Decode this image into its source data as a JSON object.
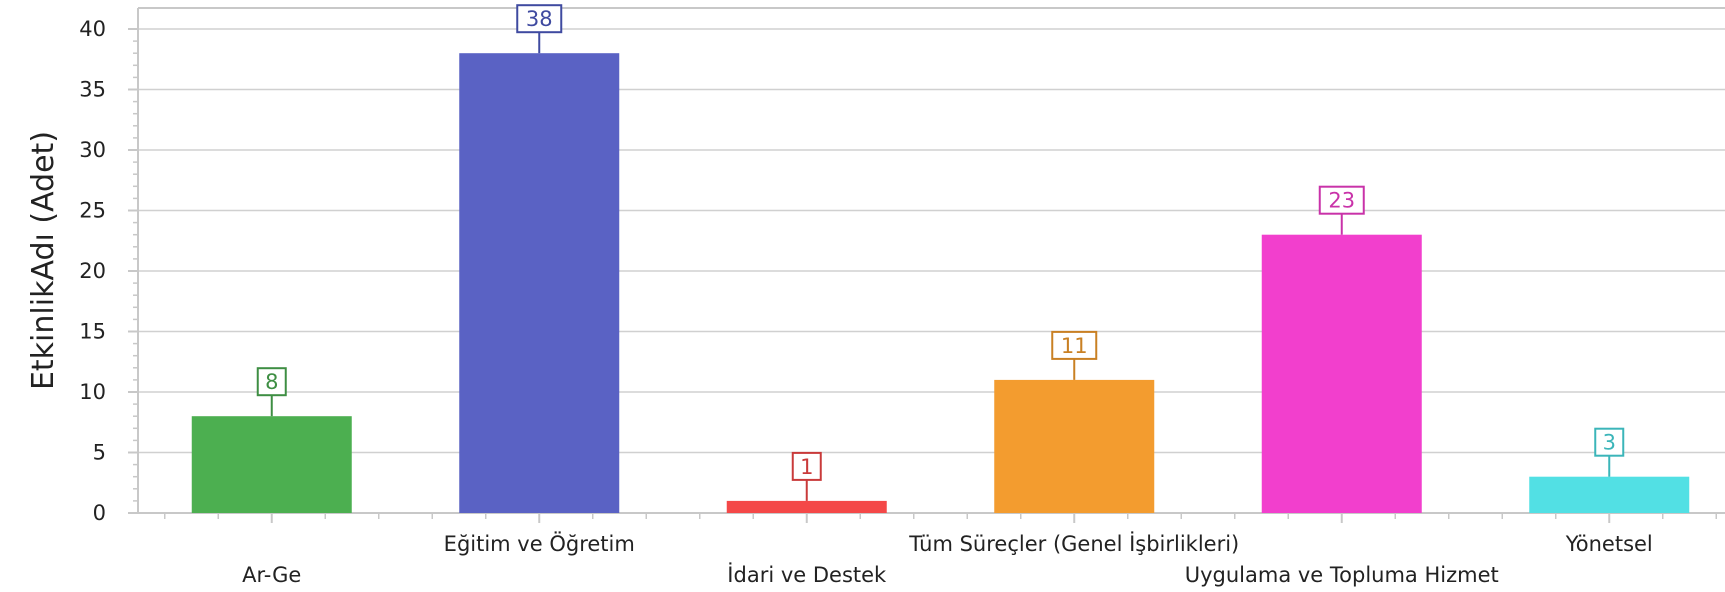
{
  "chart_data": {
    "type": "bar",
    "categories": [
      "Ar-Ge",
      "Eğitim ve Öğretim",
      "İdari ve Destek",
      "Tüm Süreçler (Genel İşbirlikleri)",
      "Uygulama ve Topluma Hizmet",
      "Yönetsel"
    ],
    "values": [
      8,
      38,
      1,
      11,
      23,
      3
    ],
    "colors": [
      "#4caf50",
      "#5a62c4",
      "#f44848",
      "#f39c2f",
      "#f23fcd",
      "#52e0e4"
    ],
    "label_colors": [
      "#3e8e43",
      "#3f4aa0",
      "#c93a3a",
      "#c98023",
      "#c932a9",
      "#3bb5b9"
    ],
    "title": "",
    "xlabel": "",
    "ylabel": "EtkinlikAdı (Adet)",
    "ylim": [
      0,
      40
    ],
    "yticks": [
      0,
      5,
      10,
      15,
      20,
      25,
      30,
      35,
      40
    ],
    "grid": true,
    "axis_color": "#c8c8c8"
  }
}
